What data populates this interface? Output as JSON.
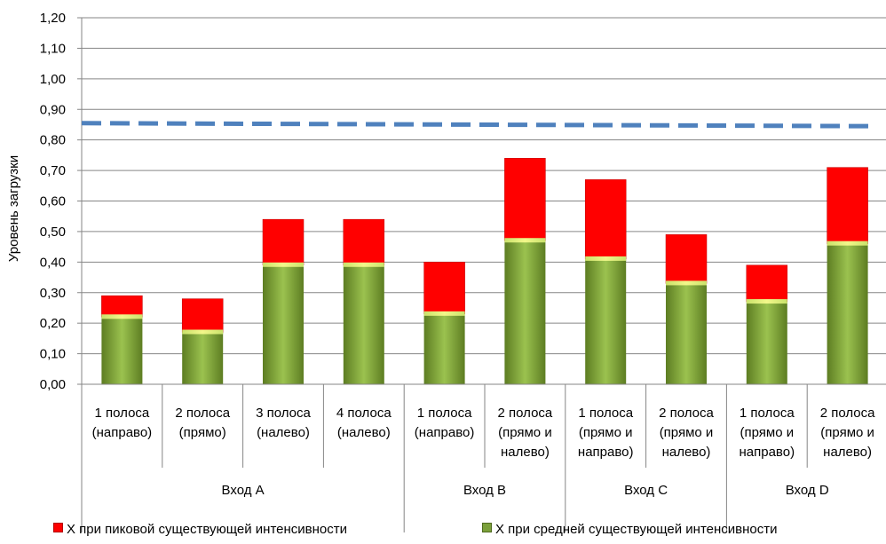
{
  "chart_data": {
    "type": "bar",
    "stacked": true,
    "ylabel": "Уровень загрузки",
    "ylim": [
      0,
      1.2
    ],
    "y_ticks": [
      "0,00",
      "0,10",
      "0,20",
      "0,30",
      "0,40",
      "0,50",
      "0,60",
      "0,70",
      "0,80",
      "0,90",
      "1,00",
      "1,10",
      "1,20"
    ],
    "grid": true,
    "categories": [
      {
        "lines": [
          "1 полоса",
          "(направо)"
        ],
        "group": "Вход А"
      },
      {
        "lines": [
          "2 полоса",
          "(прямо)"
        ],
        "group": "Вход А"
      },
      {
        "lines": [
          "3 полоса",
          "(налево)"
        ],
        "group": "Вход А"
      },
      {
        "lines": [
          "4 полоса",
          "(налево)"
        ],
        "group": "Вход А"
      },
      {
        "lines": [
          "1 полоса",
          "(направо)"
        ],
        "group": "Вход B"
      },
      {
        "lines": [
          "2 полоса",
          "(прямо и",
          "налево)"
        ],
        "group": "Вход B"
      },
      {
        "lines": [
          "1 полоса",
          "(прямо и",
          "направо)"
        ],
        "group": "Вход C"
      },
      {
        "lines": [
          "2 полоса",
          "(прямо и",
          "налево)"
        ],
        "group": "Вход C"
      },
      {
        "lines": [
          "1 полоса",
          "(прямо и",
          "направо)"
        ],
        "group": "Вход D"
      },
      {
        "lines": [
          "2 полоса",
          "(прямо и",
          "налево)"
        ],
        "group": "Вход D"
      }
    ],
    "groups": [
      {
        "label": "Вход А",
        "count": 4
      },
      {
        "label": "Вход B",
        "count": 2
      },
      {
        "label": "Вход C",
        "count": 2
      },
      {
        "label": "Вход D",
        "count": 2
      }
    ],
    "series": [
      {
        "name": "X при средней существующей интенсивности",
        "color": "#7ba03a",
        "values": [
          0.22,
          0.17,
          0.39,
          0.39,
          0.23,
          0.47,
          0.41,
          0.33,
          0.27,
          0.46
        ]
      },
      {
        "name": "X при пиковой существующей интенсивности",
        "color": "#ff0000",
        "values": [
          0.29,
          0.28,
          0.54,
          0.54,
          0.4,
          0.74,
          0.67,
          0.49,
          0.39,
          0.71
        ]
      }
    ],
    "reference_line": {
      "value": 0.85,
      "color": "#4f81bd",
      "style": "dashed"
    },
    "legend": {
      "position": "bottom",
      "items": [
        {
          "name": "X при пиковой существующей интенсивности",
          "color": "#ff0000"
        },
        {
          "name": "X при средней существующей интенсивности",
          "color": "#7ba03a"
        }
      ]
    }
  }
}
